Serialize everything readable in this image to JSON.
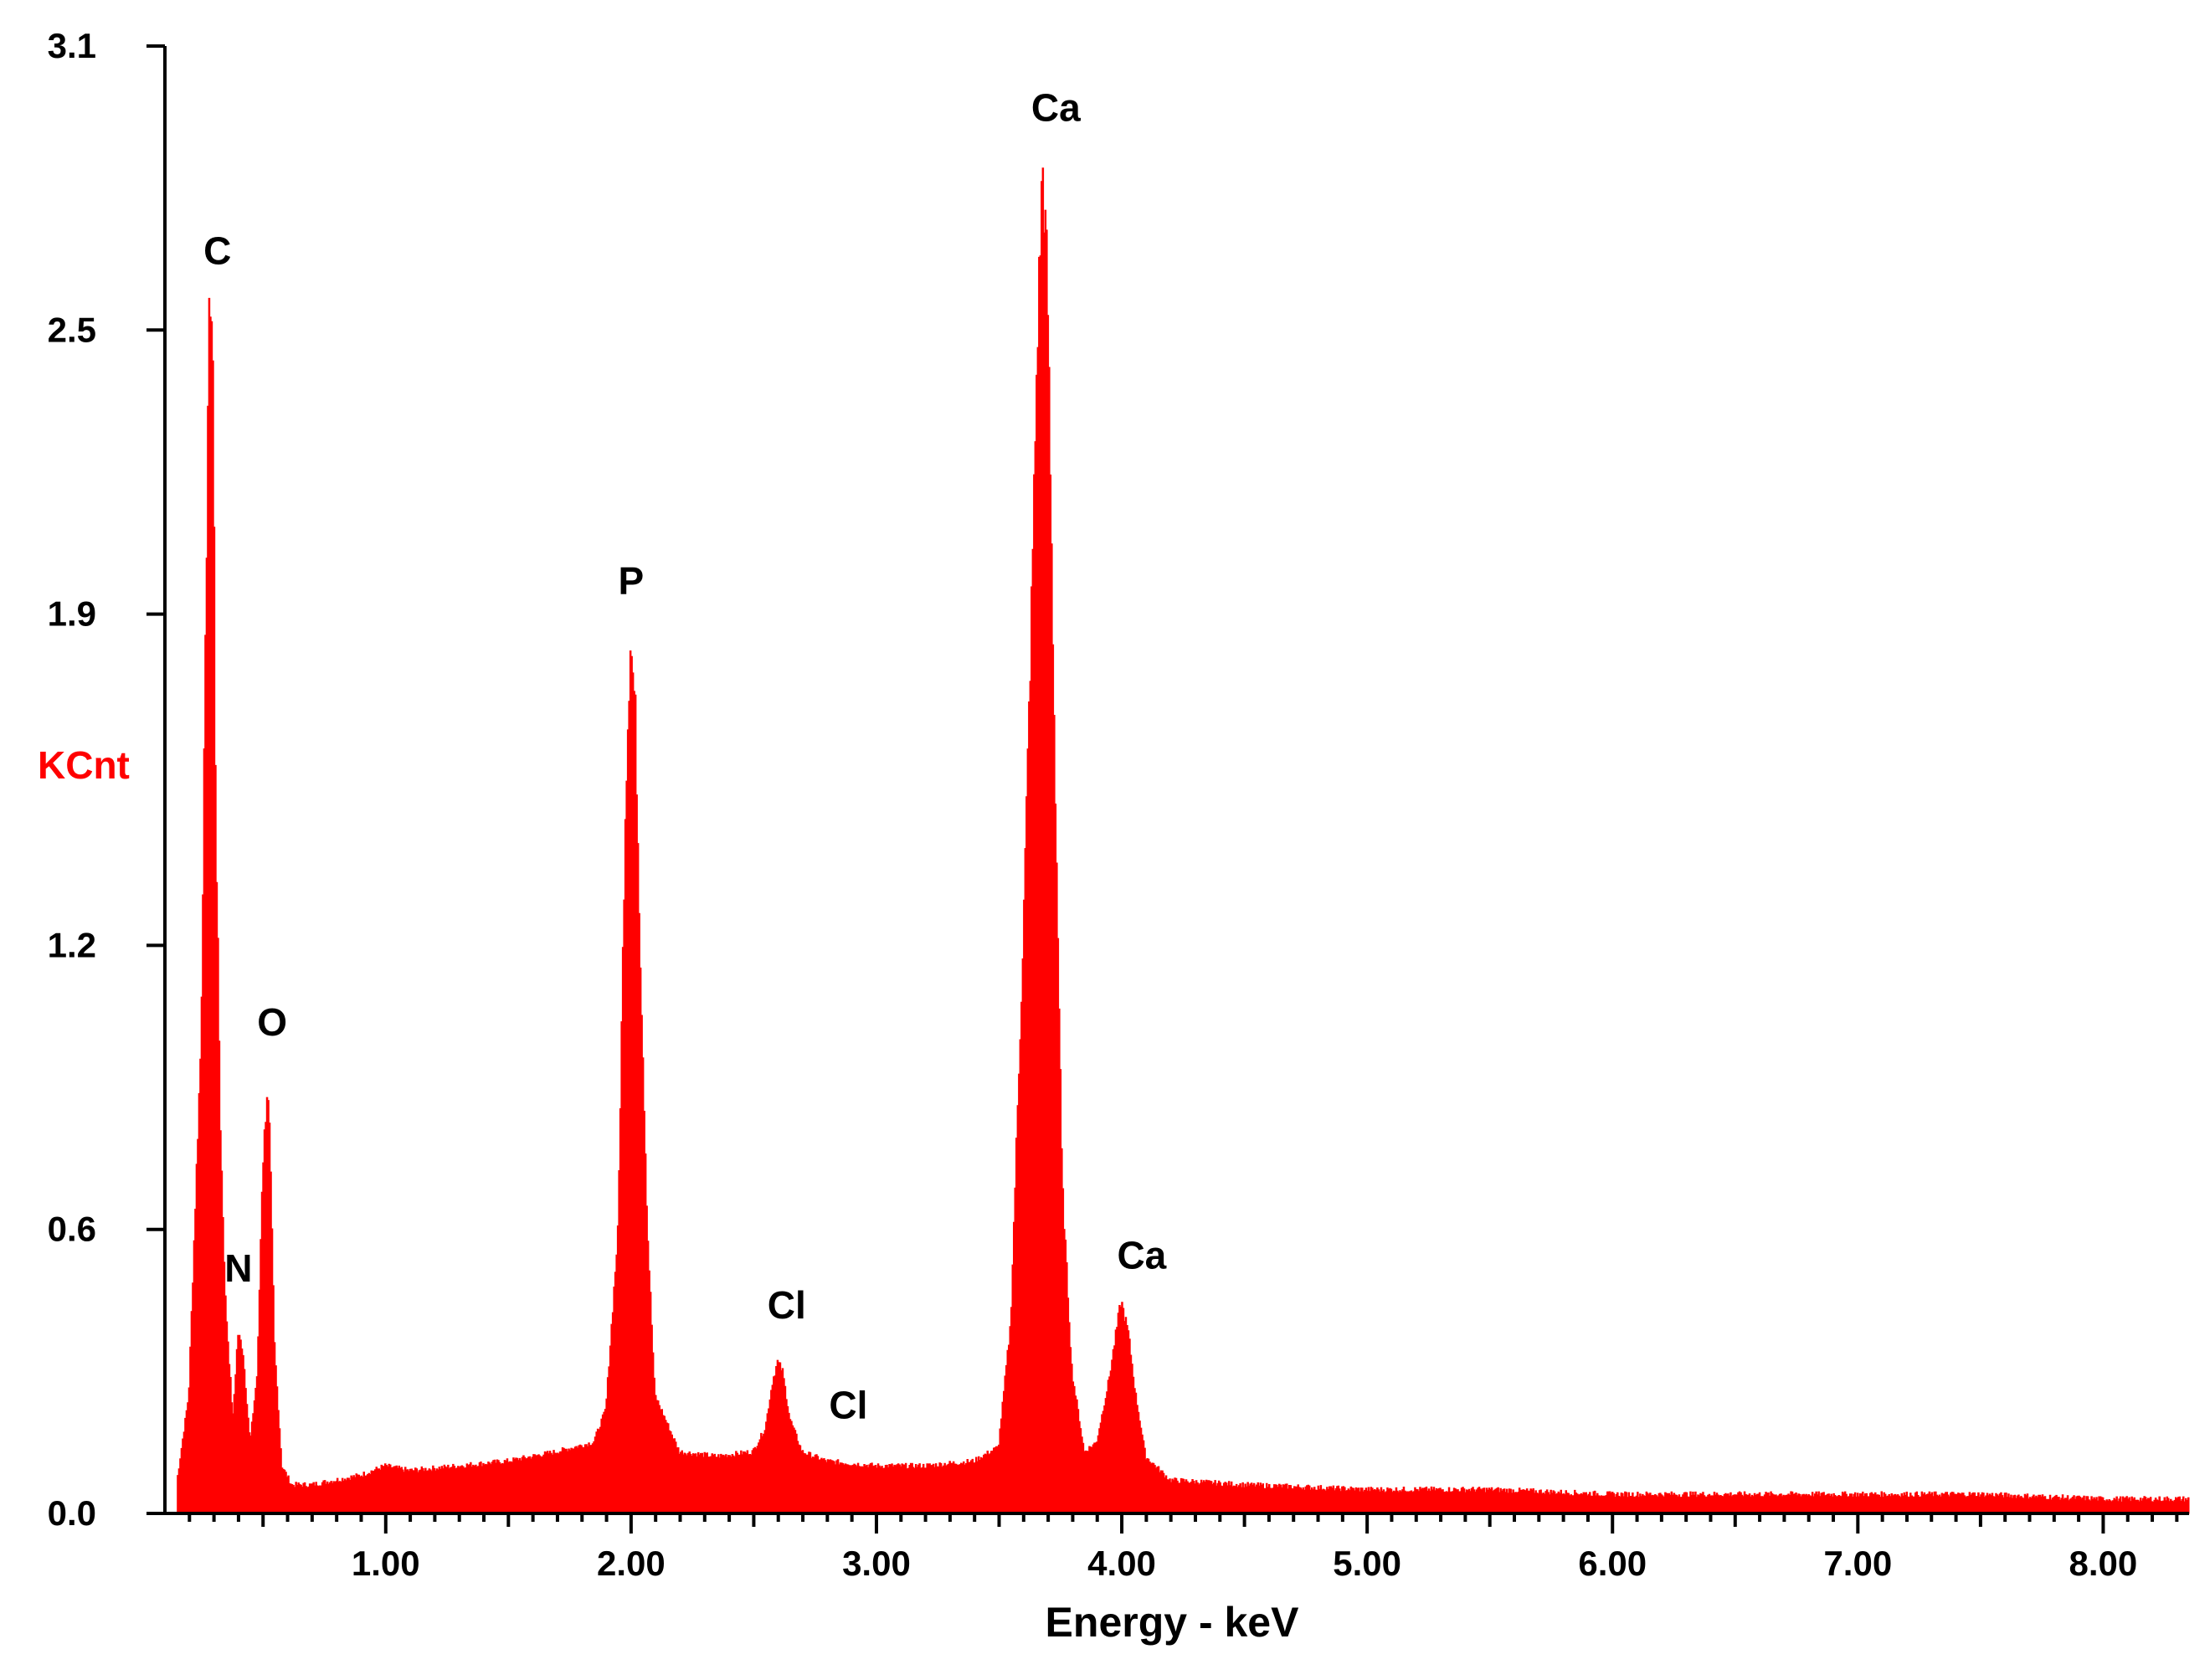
{
  "chart_data": {
    "type": "area",
    "title": "",
    "xlabel": "Energy - keV",
    "ylabel": "KCnt",
    "xlim": [
      0.1,
      8.35
    ],
    "ylim": [
      0.0,
      3.1
    ],
    "x_ticks": [
      1.0,
      2.0,
      3.0,
      4.0,
      5.0,
      6.0,
      7.0,
      8.0
    ],
    "x_tick_labels": [
      "1.00",
      "2.00",
      "3.00",
      "4.00",
      "5.00",
      "6.00",
      "7.00",
      "8.00"
    ],
    "y_ticks": [
      0.0,
      0.6,
      1.2,
      1.9,
      2.5,
      3.1
    ],
    "y_tick_labels": [
      "0.0",
      "0.6",
      "1.2",
      "1.9",
      "2.5",
      "3.1"
    ],
    "grid": false,
    "series": [
      {
        "color": "#ff0000",
        "x": [
          0.15,
          0.2,
          0.25,
          0.27,
          0.28,
          0.29,
          0.3,
          0.31,
          0.33,
          0.35,
          0.38,
          0.4,
          0.42,
          0.45,
          0.48,
          0.5,
          0.52,
          0.53,
          0.55,
          0.58,
          0.62,
          0.7,
          0.8,
          0.9,
          1.0,
          1.1,
          1.3,
          1.5,
          1.7,
          1.85,
          1.9,
          1.95,
          1.98,
          2.0,
          2.02,
          2.04,
          2.07,
          2.1,
          2.2,
          2.35,
          2.5,
          2.55,
          2.58,
          2.6,
          2.62,
          2.65,
          2.7,
          2.8,
          3.0,
          3.2,
          3.4,
          3.5,
          3.55,
          3.6,
          3.63,
          3.66,
          3.68,
          3.7,
          3.73,
          3.76,
          3.8,
          3.85,
          3.9,
          3.95,
          4.0,
          4.03,
          4.06,
          4.1,
          4.2,
          4.5,
          5.0,
          5.5,
          6.0,
          6.5,
          7.0,
          7.5,
          8.0,
          8.35
        ],
        "y": [
          0.06,
          0.25,
          1.0,
          1.9,
          2.45,
          2.6,
          2.4,
          1.5,
          0.8,
          0.45,
          0.2,
          0.38,
          0.35,
          0.15,
          0.3,
          0.72,
          0.9,
          0.8,
          0.35,
          0.1,
          0.06,
          0.06,
          0.07,
          0.08,
          0.1,
          0.09,
          0.1,
          0.11,
          0.13,
          0.15,
          0.22,
          0.6,
          1.5,
          1.85,
          1.7,
          1.2,
          0.6,
          0.25,
          0.13,
          0.12,
          0.13,
          0.18,
          0.28,
          0.32,
          0.3,
          0.2,
          0.13,
          0.11,
          0.1,
          0.1,
          0.11,
          0.14,
          0.4,
          1.2,
          1.8,
          2.5,
          2.85,
          2.6,
          1.6,
          0.7,
          0.3,
          0.13,
          0.15,
          0.28,
          0.45,
          0.38,
          0.25,
          0.12,
          0.07,
          0.06,
          0.05,
          0.05,
          0.04,
          0.04,
          0.04,
          0.04,
          0.03,
          0.03
        ]
      }
    ],
    "annotations": [
      {
        "label": "C",
        "x": 0.28,
        "y": 2.6
      },
      {
        "label": "N",
        "x": 0.4,
        "y": 0.38
      },
      {
        "label": "O",
        "x": 0.52,
        "y": 0.9
      },
      {
        "label": "P",
        "x": 2.0,
        "y": 1.85
      },
      {
        "label": "Cl",
        "x": 2.6,
        "y": 0.32
      },
      {
        "label": "Cl",
        "x": 2.8,
        "y": 0.13
      },
      {
        "label": "Ca",
        "x": 3.68,
        "y": 2.85
      },
      {
        "label": "Ca",
        "x": 4.03,
        "y": 0.45
      }
    ]
  }
}
